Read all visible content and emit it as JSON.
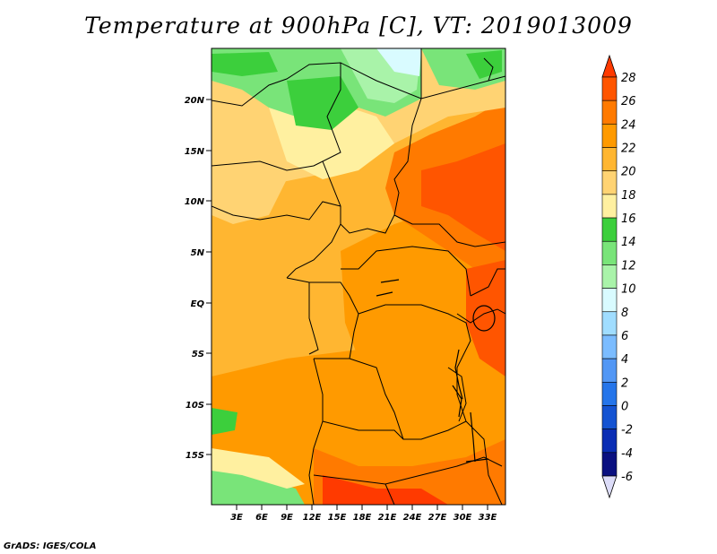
{
  "title": "Temperature at 900hPa [C], VT: 2019013009",
  "credit": "GrADS: IGES/COLA",
  "latitude_ticks": [
    "20N",
    "15N",
    "10N",
    "5N",
    "EQ",
    "5S",
    "10S",
    "15S"
  ],
  "longitude_ticks": [
    "3E",
    "6E",
    "9E",
    "12E",
    "15E",
    "18E",
    "21E",
    "24E",
    "27E",
    "30E",
    "33E"
  ],
  "colorbar": {
    "labels": [
      "28",
      "26",
      "24",
      "22",
      "20",
      "18",
      "16",
      "14",
      "12",
      "10",
      "8",
      "6",
      "4",
      "2",
      "0",
      "-2",
      "-4",
      "-6"
    ],
    "colors": [
      "#ff3a00",
      "#ff5500",
      "#ff7a00",
      "#ff9a00",
      "#ffb631",
      "#ffd373",
      "#fff0a0",
      "#3ccf3c",
      "#79e479",
      "#a9f3a9",
      "#d9fbff",
      "#a0ddff",
      "#7bbcff",
      "#5297f5",
      "#2575ea",
      "#1453d2",
      "#0a2db4",
      "#0a1080"
    ]
  }
}
